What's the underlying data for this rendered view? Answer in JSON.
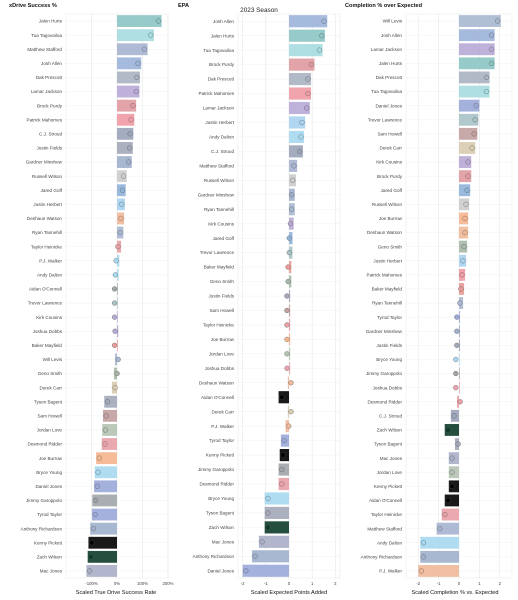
{
  "figure": {
    "title": "2023 Season"
  },
  "team_colors": {
    "PHI": "#8cc5c4",
    "DET": "#8fb3d9",
    "BUF": "#9bb3d9",
    "BAL": "#b7a8d6",
    "MIA": "#a6dce0",
    "DAL": "#aab3c2",
    "SF": "#e09aa0",
    "KC": "#f09aa4",
    "HOU": "#9aa4b8",
    "CHI": "#a2a8b8",
    "LAC": "#a9d2f0",
    "WAS": "#c2a0a0",
    "GB": "#b4c2b2",
    "TB": "#e89a96",
    "NO": "#d8ccb0",
    "CIN": "#f5b58f",
    "NYG": "#9ba9d9",
    "LV": "#a0a5a8",
    "IND": "#a0b0cc",
    "JAX": "#a8c2c6",
    "NYJ": "#0e3b2a",
    "CAR": "#a6d8f0",
    "NE": "#a8aec6",
    "ATL": "#e8a0a6",
    "ARI": "#e8a4b0",
    "LAR": "#a6b4d0",
    "TEN": "#a8b8d0",
    "SEA": "#a8b8a8",
    "PIT": "#000000",
    "CLE": "#f0b898",
    "MIN": "#b8a8d4"
  },
  "chart_data": [
    {
      "type": "bar",
      "title": "xDrive Success %",
      "xlabel": "Scaled True Drive Success Rate",
      "ylabel": "",
      "xlim": [
        -200,
        200
      ],
      "xticks": [
        -100,
        0,
        100,
        200
      ],
      "xtick_labels": [
        "-100%",
        "0%",
        "100%",
        "200%"
      ],
      "grid": true,
      "categories": [
        "Jalen Hurts",
        "Tua Tagovailoa",
        "Matthew Stafford",
        "Josh Allen",
        "Dak Prescott",
        "Lamar Jackson",
        "Brock Purdy",
        "Patrick Mahomes",
        "C.J. Stroud",
        "Justin Fields",
        "Gardner Minshew",
        "Russell Wilson",
        "Jared Goff",
        "Justin Herbert",
        "Deshaun Watson",
        "Ryan Tannehill",
        "Taylor Heinicke",
        "P.J. Walker",
        "Andy Dalton",
        "Aidan O'Connell",
        "Trevor Lawrence",
        "Kirk Cousins",
        "Joshua Dobbs",
        "Baker Mayfield",
        "Will Levis",
        "Geno Smith",
        "Derek Carr",
        "Tyson Bagent",
        "Sam Howell",
        "Jordan Love",
        "Desmond Ridder",
        "Joe Burrow",
        "Bryce Young",
        "Daniel Jones",
        "Jimmy Garoppolo",
        "Tyrod Taylor",
        "Anthony Richardson",
        "Kenny Pickett",
        "Zach Wilson",
        "Mac Jones"
      ],
      "values": [
        175,
        145,
        120,
        95,
        90,
        88,
        75,
        68,
        64,
        62,
        58,
        38,
        34,
        31,
        28,
        25,
        16,
        9,
        6,
        3,
        3,
        3,
        5,
        3,
        -8,
        -12,
        -20,
        -50,
        -55,
        -58,
        -60,
        -82,
        -87,
        -90,
        -97,
        -98,
        -105,
        -112,
        -115,
        -120
      ],
      "teams": [
        "PHI",
        "MIA",
        "LAR",
        "BUF",
        "DAL",
        "BAL",
        "SF",
        "KC",
        "HOU",
        "CHI",
        "IND",
        "DEN",
        "DET",
        "LAC",
        "CLE",
        "TEN",
        "ATL",
        "CAR",
        "CAR",
        "LV",
        "JAX",
        "MIN",
        "MIN",
        "TB",
        "TEN",
        "SEA",
        "NO",
        "CHI",
        "WAS",
        "GB",
        "ATL",
        "CIN",
        "CAR",
        "NYG",
        "LV",
        "NYG",
        "IND",
        "PIT",
        "NYJ",
        "NE"
      ]
    },
    {
      "type": "bar",
      "title": "EPA",
      "xlabel": "Scaled Expected Points Added",
      "ylabel": "",
      "xlim": [
        -2.2,
        2.2
      ],
      "xticks": [
        -2,
        -1,
        0,
        1,
        2
      ],
      "xtick_labels": [
        "-2",
        "-1",
        "0",
        "1",
        "2"
      ],
      "grid": true,
      "categories": [
        "Josh Allen",
        "Jalen Hurts",
        "Tua Tagovailoa",
        "Brock Purdy",
        "Dak Prescott",
        "Patrick Mahomes",
        "Lamar Jackson",
        "Justin Herbert",
        "Andy Dalton",
        "C.J. Stroud",
        "Matthew Stafford",
        "Russell Wilson",
        "Gardner Minshew",
        "Ryan Tannehill",
        "Kirk Cousins",
        "Jared Goff",
        "Trevor Lawrence",
        "Baker Mayfield",
        "Geno Smith",
        "Justin Fields",
        "Sam Howell",
        "Taylor Heinicke",
        "Joe Burrow",
        "Jordan Love",
        "Joshua Dobbs",
        "Deshaun Watson",
        "Aidan O'Connell",
        "Derek Carr",
        "P.J. Walker",
        "Tyrod Taylor",
        "Kenny Pickett",
        "Jimmy Garoppolo",
        "Desmond Ridder",
        "Bryce Young",
        "Tyson Bagent",
        "Zach Wilson",
        "Mac Jones",
        "Anthony Richardson",
        "Daniel Jones"
      ],
      "values": [
        1.65,
        1.55,
        1.45,
        1.1,
        0.95,
        0.95,
        0.9,
        0.7,
        0.65,
        0.6,
        0.35,
        0.3,
        0.25,
        0.25,
        0.2,
        0.15,
        0.15,
        0.1,
        0.1,
        0.05,
        0.05,
        0.05,
        0.05,
        0.05,
        0.05,
        -0.05,
        -0.45,
        -0.05,
        -0.15,
        -0.35,
        -0.4,
        -0.45,
        -0.45,
        -1.05,
        -1.05,
        -1.05,
        -1.3,
        -1.6,
        -2.0
      ],
      "teams": [
        "BUF",
        "PHI",
        "MIA",
        "SF",
        "DAL",
        "KC",
        "BAL",
        "LAC",
        "CAR",
        "HOU",
        "LAR",
        "DEN",
        "IND",
        "TEN",
        "MIN",
        "DET",
        "JAX",
        "TB",
        "SEA",
        "CHI",
        "WAS",
        "ATL",
        "CIN",
        "GB",
        "ARI",
        "CLE",
        "PIT",
        "NO",
        "CLE",
        "NYG",
        "PIT",
        "LV",
        "ATL",
        "CAR",
        "CHI",
        "NYJ",
        "NE",
        "IND",
        "NYG"
      ]
    },
    {
      "type": "bar",
      "title": "Completion % over Expected",
      "xlabel": "Scaled Completion % vs. Expected",
      "ylabel": "",
      "xlim": [
        -2.6,
        2.6
      ],
      "xticks": [
        -2,
        -1,
        0,
        1,
        2
      ],
      "xtick_labels": [
        "-2",
        "-1",
        "0",
        "1",
        "2"
      ],
      "grid": true,
      "categories": [
        "Will Levis",
        "Josh Allen",
        "Lamar Jackson",
        "Jalen Hurts",
        "Dak Prescott",
        "Tua Tagovailoa",
        "Daniel Jones",
        "Trevor Lawrence",
        "Sam Howell",
        "Derek Carr",
        "Kirk Cousins",
        "Brock Purdy",
        "Jared Goff",
        "Russell Wilson",
        "Joe Burrow",
        "Deshaun Watson",
        "Geno Smith",
        "Justin Herbert",
        "Patrick Mahomes",
        "Baker Mayfield",
        "Ryan Tannehill",
        "Tyrod Taylor",
        "Gardner Minshew",
        "Justin Fields",
        "Bryce Young",
        "Jimmy Garoppolo",
        "Joshua Dobbs",
        "Desmond Ridder",
        "C.J. Stroud",
        "Zach Wilson",
        "Tyson Bagent",
        "Mac Jones",
        "Jordan Love",
        "Kenny Pickett",
        "Aidan O'Connell",
        "Taylor Heinicke",
        "Matthew Stafford",
        "Andy Dalton",
        "Anthony Richardson",
        "P.J. Walker"
      ],
      "values": [
        2.05,
        1.75,
        1.75,
        1.75,
        1.5,
        1.5,
        1.0,
        0.95,
        0.9,
        0.8,
        0.6,
        0.6,
        0.55,
        0.5,
        0.45,
        0.45,
        0.4,
        0.35,
        0.3,
        0.25,
        0.2,
        0.05,
        0.05,
        0.05,
        0.0,
        0.0,
        0.0,
        -0.1,
        -0.4,
        -0.7,
        -0.2,
        -0.5,
        -0.5,
        -0.5,
        -0.7,
        -0.85,
        -1.1,
        -1.9,
        -1.9,
        -2.0
      ],
      "teams": [
        "TEN",
        "BUF",
        "BAL",
        "PHI",
        "DAL",
        "MIA",
        "NYG",
        "JAX",
        "WAS",
        "NO",
        "MIN",
        "SF",
        "DET",
        "DEN",
        "CIN",
        "CLE",
        "SEA",
        "LAC",
        "KC",
        "TB",
        "TEN",
        "NYG",
        "IND",
        "CHI",
        "CAR",
        "LV",
        "ARI",
        "ATL",
        "HOU",
        "NYJ",
        "CHI",
        "NE",
        "GB",
        "PIT",
        "PIT",
        "ATL",
        "LAR",
        "CAR",
        "IND",
        "CLE"
      ]
    }
  ]
}
